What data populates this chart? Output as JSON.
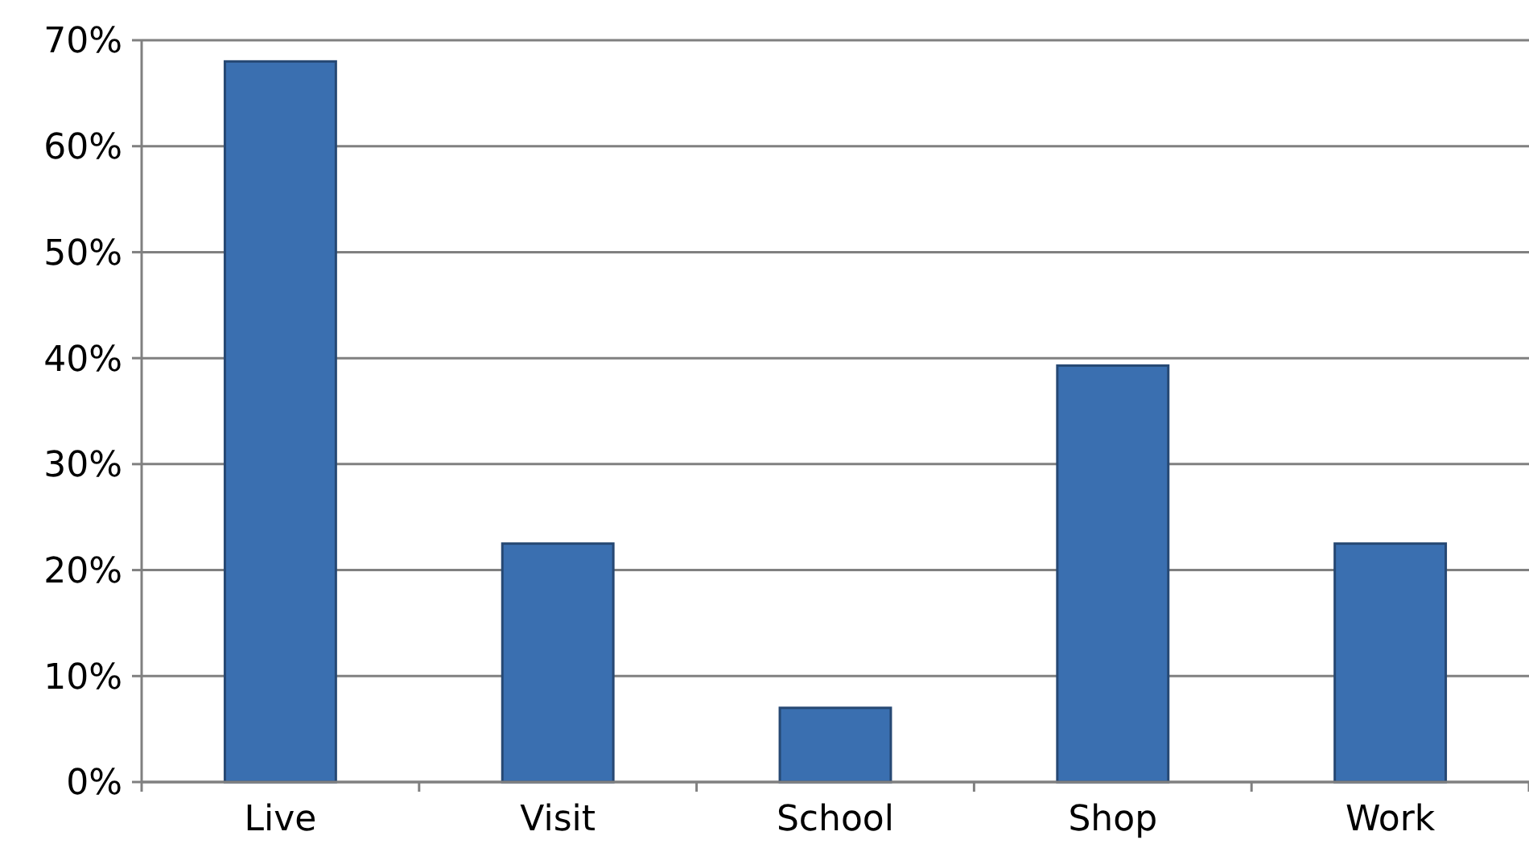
{
  "chart_data": {
    "type": "bar",
    "categories": [
      "Live",
      "Visit",
      "School",
      "Shop",
      "Work"
    ],
    "values": [
      68,
      22.5,
      7,
      39.3,
      22.5
    ],
    "color": "#3a6fb0",
    "ylim": [
      0,
      70
    ],
    "yticks": [
      {
        "value": 0,
        "label": "0%"
      },
      {
        "value": 10,
        "label": "10%"
      },
      {
        "value": 20,
        "label": "20%"
      },
      {
        "value": 30,
        "label": "30%"
      },
      {
        "value": 40,
        "label": "40%"
      },
      {
        "value": 50,
        "label": "50%"
      },
      {
        "value": 60,
        "label": "60%"
      },
      {
        "value": 70,
        "label": "70%"
      }
    ],
    "grid": "y"
  }
}
